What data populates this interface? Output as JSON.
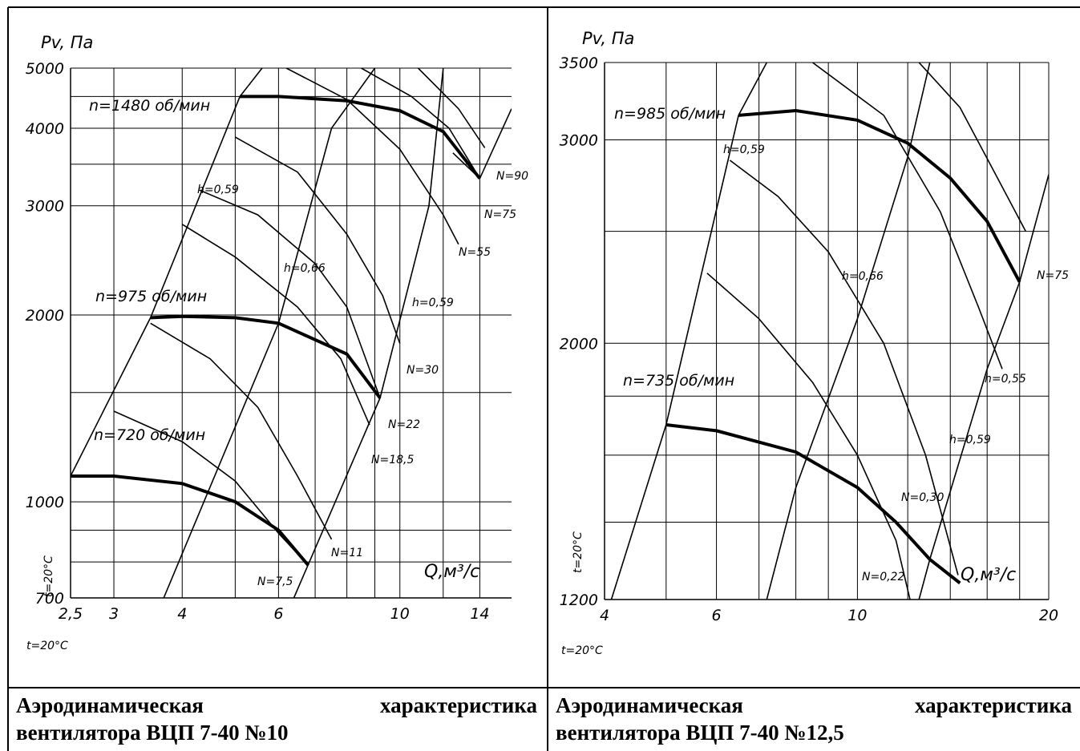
{
  "panels": [
    {
      "chart_data": {
        "type": "line",
        "xscale": "log",
        "yscale": "log",
        "xlim": [
          2.5,
          16
        ],
        "ylim": [
          700,
          5000
        ],
        "xticks": [
          2.5,
          3,
          4,
          6,
          10,
          14
        ],
        "xtick_labels": [
          "2,5",
          "3",
          "4",
          "6",
          "10",
          "14"
        ],
        "yticks": [
          700,
          1000,
          2000,
          3000,
          4000,
          5000
        ],
        "ytick_labels": [
          "700",
          "1000",
          "2000",
          "3000",
          "4000",
          "5000"
        ],
        "ylabel": "Pv, Па",
        "xlabel": "Q,м³/с",
        "temp_label": "t=20°C",
        "grid": true,
        "fan_curves": [
          {
            "label": "n=1480 об/мин",
            "points": [
              [
                5.1,
                4500
              ],
              [
                6.0,
                4500
              ],
              [
                8.0,
                4430
              ],
              [
                10.0,
                4270
              ],
              [
                12.0,
                3950
              ],
              [
                14.0,
                3320
              ]
            ]
          },
          {
            "label": "n=975 об/мин",
            "points": [
              [
                3.5,
                1980
              ],
              [
                4.0,
                1990
              ],
              [
                5.0,
                1980
              ],
              [
                6.0,
                1940
              ],
              [
                8.0,
                1730
              ],
              [
                9.2,
                1470
              ]
            ]
          },
          {
            "label": "n=720 об/мин",
            "points": [
              [
                2.5,
                1100
              ],
              [
                3.0,
                1100
              ],
              [
                4.0,
                1070
              ],
              [
                5.0,
                1000
              ],
              [
                6.0,
                900
              ],
              [
                6.8,
                790
              ]
            ]
          }
        ],
        "efficiency_lines": [
          {
            "points": [
              [
                2.5,
                1100
              ],
              [
                3.5,
                1980
              ],
              [
                5.1,
                4500
              ],
              [
                5.6,
                5000
              ]
            ]
          },
          {
            "points": [
              [
                3.7,
                700
              ],
              [
                6.0,
                1940
              ],
              [
                7.5,
                4000
              ],
              [
                9.0,
                5000
              ]
            ]
          },
          {
            "points": [
              [
                6.4,
                700
              ],
              [
                9.2,
                1470
              ],
              [
                11.3,
                3000
              ],
              [
                12.0,
                5000
              ]
            ]
          },
          {
            "points": [
              [
                12.5,
                3650
              ],
              [
                14.0,
                3320
              ],
              [
                16.0,
                4300
              ]
            ]
          }
        ],
        "power_lines": [
          {
            "label": "N=7,5",
            "points": [
              [
                3.0,
                1400
              ],
              [
                4.0,
                1250
              ],
              [
                5.0,
                1080
              ],
              [
                6.0,
                890
              ],
              [
                6.8,
                790
              ]
            ]
          },
          {
            "label": "N=11",
            "points": [
              [
                3.5,
                1940
              ],
              [
                4.5,
                1700
              ],
              [
                5.5,
                1420
              ],
              [
                6.5,
                1100
              ],
              [
                7.5,
                870
              ]
            ]
          },
          {
            "label": "N=18,5",
            "points": [
              [
                4.0,
                2800
              ],
              [
                5.0,
                2480
              ],
              [
                6.5,
                2060
              ],
              [
                7.8,
                1700
              ],
              [
                8.8,
                1330
              ]
            ]
          },
          {
            "label": "N=22",
            "points": [
              [
                4.3,
                3180
              ],
              [
                5.5,
                2900
              ],
              [
                7.0,
                2420
              ],
              [
                8.0,
                2060
              ],
              [
                9.2,
                1470
              ]
            ]
          },
          {
            "label": "N=30",
            "points": [
              [
                5.0,
                3870
              ],
              [
                6.5,
                3400
              ],
              [
                8.0,
                2700
              ],
              [
                9.3,
                2150
              ],
              [
                10.0,
                1800
              ]
            ]
          },
          {
            "label": "N=55",
            "points": [
              [
                6.2,
                5000
              ],
              [
                8.0,
                4450
              ],
              [
                10.0,
                3700
              ],
              [
                12.0,
                2900
              ],
              [
                12.8,
                2600
              ]
            ]
          },
          {
            "label": "N=75",
            "points": [
              [
                8.5,
                5000
              ],
              [
                10.5,
                4500
              ],
              [
                12.3,
                4000
              ],
              [
                14.0,
                3320
              ]
            ]
          },
          {
            "label": "N=90",
            "points": [
              [
                10.8,
                5000
              ],
              [
                12.8,
                4300
              ],
              [
                14.3,
                3720
              ]
            ]
          }
        ],
        "annotations": [
          "h=0,59",
          "h=0,66",
          "h=0,59"
        ]
      },
      "caption_line1_left": "Аэродинамическая",
      "caption_line1_right": "характеристика",
      "caption_line2": "вентилятора ВЦП 7-40 №10"
    },
    {
      "chart_data": {
        "type": "line",
        "xscale": "log",
        "yscale": "log",
        "xlim": [
          4,
          20
        ],
        "ylim": [
          1200,
          3500
        ],
        "xticks": [
          4,
          6,
          10,
          20
        ],
        "xtick_labels": [
          "4",
          "6",
          "10",
          "20"
        ],
        "yticks": [
          1200,
          2000,
          3000,
          3500
        ],
        "ytick_labels": [
          "1200",
          "2000",
          "3000",
          "3500"
        ],
        "ylabel": "Pv, Па",
        "xlabel": "Q,м³/с",
        "temp_label": "t=20°C",
        "temp_label_side": "t=20°C",
        "grid": true,
        "fan_curves": [
          {
            "label": "n=985 об/мин",
            "points": [
              [
                6.5,
                3150
              ],
              [
                8.0,
                3180
              ],
              [
                10.0,
                3120
              ],
              [
                12.0,
                2980
              ],
              [
                14.0,
                2780
              ],
              [
                16.0,
                2550
              ],
              [
                18.0,
                2260
              ]
            ]
          },
          {
            "label": "n=735 об/мин",
            "points": [
              [
                5.0,
                1700
              ],
              [
                6.0,
                1680
              ],
              [
                8.0,
                1610
              ],
              [
                10.0,
                1500
              ],
              [
                11.5,
                1400
              ],
              [
                13.0,
                1300
              ],
              [
                14.5,
                1240
              ]
            ]
          }
        ],
        "efficiency_lines": [
          {
            "points": [
              [
                4.1,
                1200
              ],
              [
                5.0,
                1700
              ],
              [
                6.5,
                3150
              ],
              [
                7.2,
                3500
              ]
            ]
          },
          {
            "points": [
              [
                7.2,
                1200
              ],
              [
                8.0,
                1500
              ],
              [
                10.0,
                2100
              ],
              [
                12.0,
                2900
              ],
              [
                13.0,
                3500
              ]
            ]
          },
          {
            "points": [
              [
                12.5,
                1200
              ],
              [
                13.0,
                1300
              ],
              [
                16.0,
                1900
              ],
              [
                18.0,
                2260
              ],
              [
                20.0,
                2800
              ]
            ]
          }
        ],
        "power_lines": [
          {
            "label": "N=0,22",
            "points": [
              [
                5.8,
                2300
              ],
              [
                7.0,
                2100
              ],
              [
                8.5,
                1850
              ],
              [
                10.0,
                1600
              ],
              [
                11.5,
                1350
              ],
              [
                12.1,
                1200
              ]
            ]
          },
          {
            "label": "N=0,30",
            "points": [
              [
                6.3,
                2880
              ],
              [
                7.5,
                2680
              ],
              [
                9.0,
                2400
              ],
              [
                11.0,
                2000
              ],
              [
                12.8,
                1600
              ],
              [
                14.4,
                1260
              ]
            ]
          },
          {
            "label": "h=0,55",
            "points": [
              [
                8.5,
                3500
              ],
              [
                11.0,
                3150
              ],
              [
                13.5,
                2600
              ],
              [
                15.5,
                2150
              ],
              [
                16.9,
                1900
              ]
            ]
          },
          {
            "label": "N=75",
            "points": [
              [
                12.5,
                3500
              ],
              [
                14.5,
                3200
              ],
              [
                16.5,
                2800
              ],
              [
                18.4,
                2500
              ]
            ]
          }
        ],
        "annotations": [
          "h=0,59",
          "h=0,66",
          "h=0,59"
        ]
      },
      "caption_line1_left": "Аэродинамическая",
      "caption_line1_right": "характеристика",
      "caption_line2": "вентилятора ВЦП 7-40 №12,5"
    }
  ]
}
